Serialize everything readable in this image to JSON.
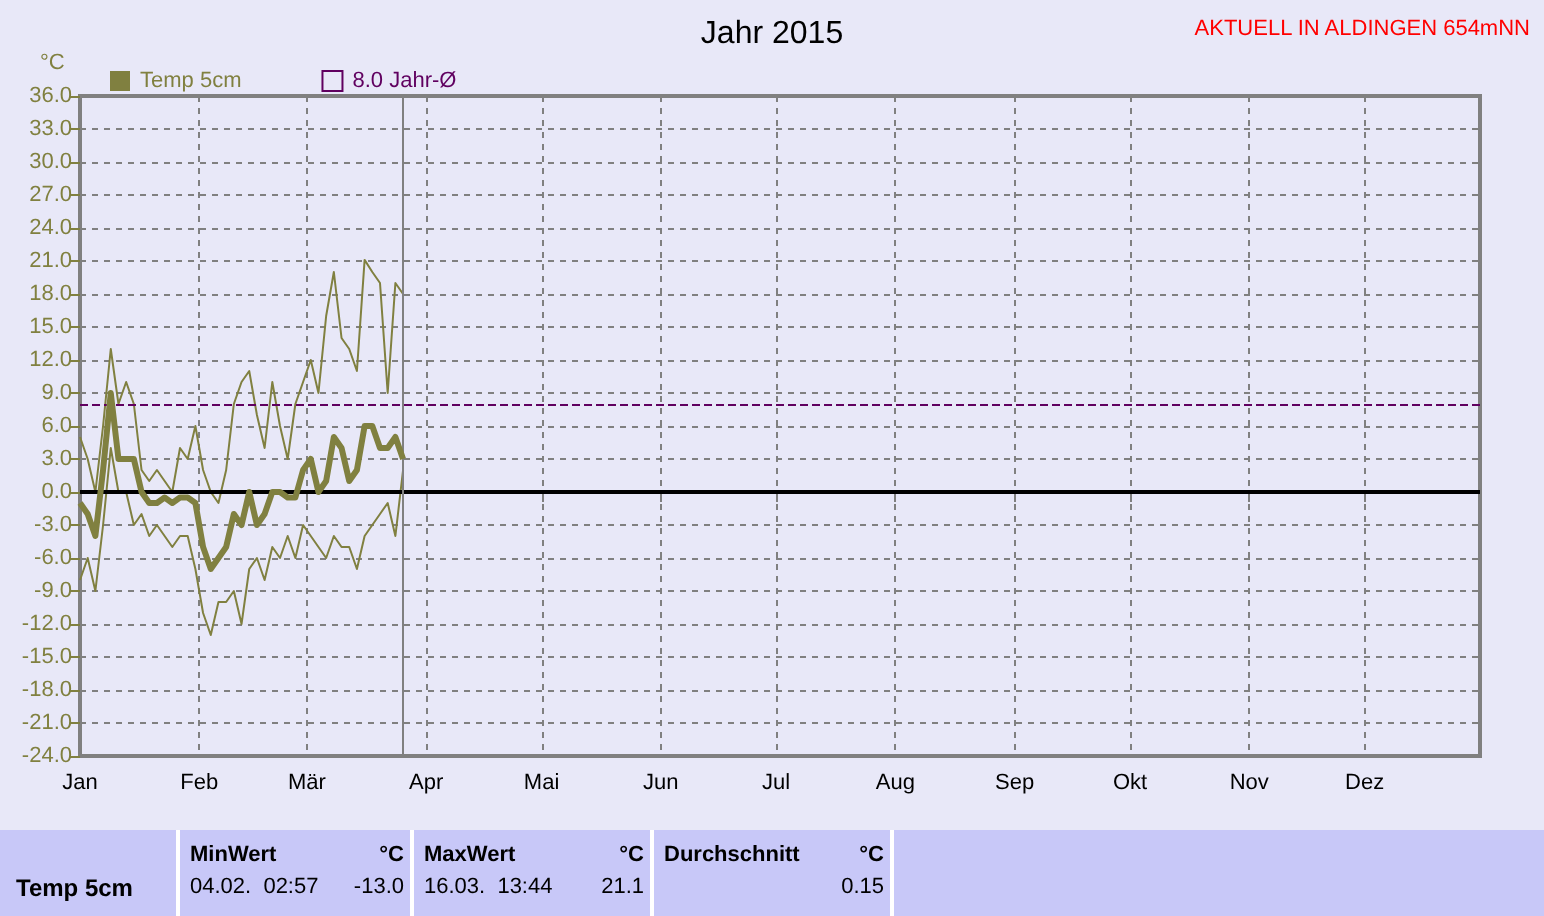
{
  "chart_data": {
    "type": "line",
    "title": "Jahr 2015",
    "ylabel": "°C",
    "annotations": [
      "AKTUELL IN ALDINGEN 654mNN",
      "Temp 5cm",
      "MinWert",
      "°C",
      "04.02.  02:57",
      "-13.0",
      "MaxWert",
      "°C",
      "16.03.  13:44",
      "21.1",
      "Durchschnitt",
      "°C",
      "0.15"
    ],
    "x": [
      "2015-01-01",
      "2015-01-03",
      "2015-01-05",
      "2015-01-07",
      "2015-01-09",
      "2015-01-11",
      "2015-01-13",
      "2015-01-15",
      "2015-01-17",
      "2015-01-19",
      "2015-01-21",
      "2015-01-23",
      "2015-01-25",
      "2015-01-27",
      "2015-01-29",
      "2015-01-31",
      "2015-02-02",
      "2015-02-04",
      "2015-02-06",
      "2015-02-08",
      "2015-02-10",
      "2015-02-12",
      "2015-02-14",
      "2015-02-16",
      "2015-02-18",
      "2015-02-20",
      "2015-02-22",
      "2015-02-24",
      "2015-02-26",
      "2015-02-28",
      "2015-03-02",
      "2015-03-04",
      "2015-03-06",
      "2015-03-08",
      "2015-03-10",
      "2015-03-12",
      "2015-03-14",
      "2015-03-16",
      "2015-03-18",
      "2015-03-20",
      "2015-03-22",
      "2015-03-24",
      "2015-03-26"
    ],
    "series": [
      {
        "color": "#808040",
        "values": [
          5,
          3,
          0,
          6,
          13,
          8,
          10,
          8,
          2,
          1,
          2,
          1,
          0,
          4,
          3,
          6,
          2,
          0,
          -1,
          2,
          8,
          10,
          11,
          7,
          4,
          10,
          6,
          3,
          8,
          10,
          12,
          9,
          16,
          20,
          14,
          13,
          11,
          21.1,
          20,
          19,
          9,
          19,
          18
        ]
      },
      {
        "color": "#808040",
        "values": [
          -8,
          -6,
          -9,
          -3,
          4,
          0,
          0,
          -3,
          -2,
          -4,
          -3,
          -4,
          -5,
          -4,
          -4,
          -7,
          -11,
          -13,
          -10,
          -10,
          -9,
          -12,
          -7,
          -6,
          -8,
          -5,
          -6,
          -4,
          -6,
          -3,
          -4,
          -5,
          -6,
          -4,
          -5,
          -5,
          -7,
          -4,
          -3,
          -2,
          -1,
          -4,
          2
        ]
      },
      {
        "name": "Temp 5cm",
        "color": "#808040",
        "values": [
          -1,
          -2,
          -4,
          2,
          9,
          3,
          3,
          3,
          0,
          -1,
          -1,
          -0.5,
          -1,
          -0.5,
          -0.5,
          -1,
          -5,
          -7,
          -6,
          -5,
          -2,
          -3,
          0,
          -3,
          -2,
          0,
          0,
          -0.5,
          -0.5,
          2,
          3,
          0,
          1,
          5,
          4,
          1,
          2,
          6,
          6,
          4,
          4,
          5,
          3
        ]
      }
    ],
    "xlim": [
      "2015-01-01",
      "2015-12-31"
    ],
    "xticks": [
      {
        "value": "2015-01-01",
        "label": "Jan"
      },
      {
        "value": "2015-02-01",
        "label": "Feb"
      },
      {
        "value": "2015-03-01",
        "label": "Mär"
      },
      {
        "value": "2015-04-01",
        "label": "Apr"
      },
      {
        "value": "2015-05-01",
        "label": "Mai"
      },
      {
        "value": "2015-06-01",
        "label": "Jun"
      },
      {
        "value": "2015-07-01",
        "label": "Jul"
      },
      {
        "value": "2015-08-01",
        "label": "Aug"
      },
      {
        "value": "2015-09-01",
        "label": "Sep"
      },
      {
        "value": "2015-10-01",
        "label": "Okt"
      },
      {
        "value": "2015-11-01",
        "label": "Nov"
      },
      {
        "value": "2015-12-01",
        "label": "Dez"
      }
    ],
    "ylim": [
      -24,
      36
    ],
    "yticks": [
      {
        "value": -24,
        "label": "-24.0"
      },
      {
        "value": -21,
        "label": "-21.0"
      },
      {
        "value": -18,
        "label": "-18.0"
      },
      {
        "value": -15,
        "label": "-15.0"
      },
      {
        "value": -12,
        "label": "-12.0"
      },
      {
        "value": -9,
        "label": "-9.0"
      },
      {
        "value": -6,
        "label": "-6.0"
      },
      {
        "value": -3,
        "label": "-3.0"
      },
      {
        "value": 0,
        "label": "0.0"
      },
      {
        "value": 3,
        "label": "3.0"
      },
      {
        "value": 6,
        "label": "6.0"
      },
      {
        "value": 9,
        "label": "9.0"
      },
      {
        "value": 12,
        "label": "12.0"
      },
      {
        "value": 15,
        "label": "15.0"
      },
      {
        "value": 18,
        "label": "18.0"
      },
      {
        "value": 21,
        "label": "21.0"
      },
      {
        "value": 24,
        "label": "24.0"
      },
      {
        "value": 27,
        "label": "27.0"
      },
      {
        "value": 30,
        "label": "30.0"
      },
      {
        "value": 33,
        "label": "33.0"
      },
      {
        "value": 36,
        "label": "36.0"
      }
    ],
    "ref_lines": [
      {
        "axis": "y",
        "value": 8,
        "label": "8.0 Jahr-Ø",
        "color": "#600060",
        "line_style": "dashed"
      },
      {
        "axis": "y",
        "value": 0,
        "color": "#000000",
        "line_style": "solid"
      },
      {
        "axis": "x",
        "value": "2015-03-26",
        "color": "#808080",
        "line_style": "solid"
      }
    ],
    "grid": true,
    "legend": "top left",
    "marker": "none",
    "line_style": "solid"
  }
}
